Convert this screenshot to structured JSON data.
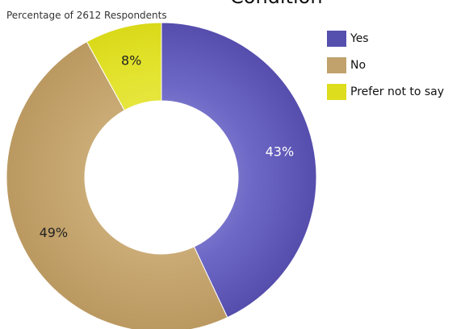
{
  "chart_data": {
    "type": "pie",
    "style": "donut",
    "title": "Condition",
    "subtitle": "Percentage of 2612 Respondents",
    "labels": [
      "Yes",
      "No",
      "Prefer not to say"
    ],
    "values": [
      43,
      49,
      8
    ],
    "value_labels": [
      "43%",
      "49%",
      "8%"
    ],
    "colors": [
      "#5550ad",
      "#c1a26d",
      "#dddd1d"
    ],
    "legend_position": "top-right",
    "start_angle_deg": 0,
    "direction": "clockwise"
  }
}
